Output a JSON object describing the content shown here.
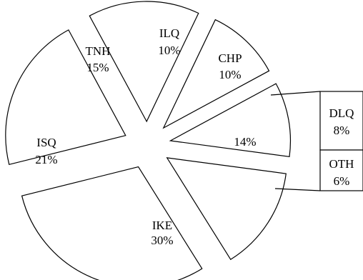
{
  "chart_data": {
    "type": "pie",
    "title": "",
    "slices": [
      {
        "label": "IKE",
        "value": 30,
        "value_label": "30%"
      },
      {
        "label": "ISQ",
        "value": 21,
        "value_label": "21%"
      },
      {
        "label": "TNH",
        "value": 15,
        "value_label": "15%"
      },
      {
        "label": "ILQ",
        "value": 10,
        "value_label": "10%"
      },
      {
        "label": "CHP",
        "value": 10,
        "value_label": "10%"
      },
      {
        "label": "",
        "value": 14,
        "value_label": "14%"
      }
    ],
    "breakdown": {
      "of_slice_value_label": "14%",
      "type": "stacked-bar",
      "segments": [
        {
          "label": "DLQ",
          "value": 8,
          "value_label": "8%"
        },
        {
          "label": "OTH",
          "value": 6,
          "value_label": "6%"
        }
      ]
    },
    "colors": {
      "fill": "#ffffff",
      "stroke": "#000000"
    }
  }
}
